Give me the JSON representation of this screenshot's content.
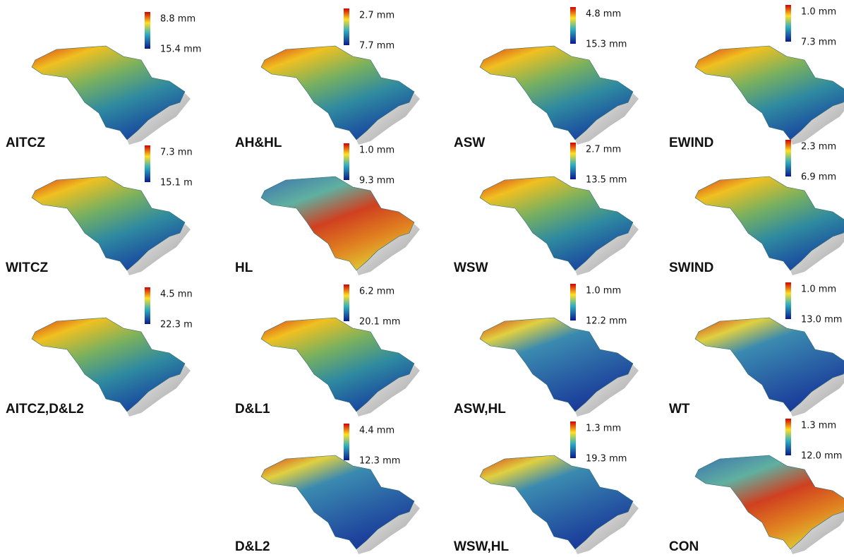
{
  "panels": [
    {
      "label": "AITCZ",
      "max": "8.8 mm",
      "min": "15.4 mm"
    },
    {
      "label": "AH&HL",
      "max": "2.7 mm",
      "min": "7.7 mm"
    },
    {
      "label": "ASW",
      "max": "4.8 mm",
      "min": "15.3 mm"
    },
    {
      "label": "EWIND",
      "max": "1.0 mm",
      "min": "7.3 mm"
    },
    {
      "label": "WITCZ",
      "max": "7.3 mn",
      "min": "15.1 m"
    },
    {
      "label": "HL",
      "max": "1.0 mm",
      "min": "9.3 mm"
    },
    {
      "label": "WSW",
      "max": "2.7 mm",
      "min": "13.5 mm"
    },
    {
      "label": "SWIND",
      "max": "2.3 mm",
      "min": "6.9 mm"
    },
    {
      "label": "AITCZ,D&L2",
      "max": "4.5 mn",
      "min": "22.3 m"
    },
    {
      "label": "D&L1",
      "max": "6.2 mm",
      "min": "20.1 mm"
    },
    {
      "label": "ASW,HL",
      "max": "1.0 mm",
      "min": "12.2 mm"
    },
    {
      "label": "WT",
      "max": "1.0 mm",
      "min": "13.0 mm"
    },
    {
      "label": "D&L2",
      "max": "4.4 mm",
      "min": "12.3 mm"
    },
    {
      "label": "WSW,HL",
      "max": "1.3 mm",
      "min": "19.3 mm"
    },
    {
      "label": "CON",
      "max": "1.3 mm",
      "min": "12.0 mm"
    }
  ]
}
